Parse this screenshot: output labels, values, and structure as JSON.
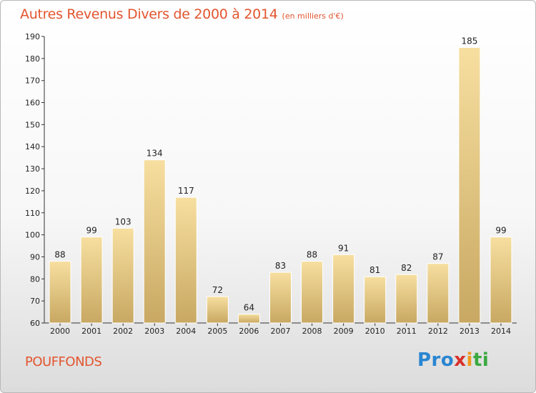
{
  "title": "Autres Revenus Divers de 2000 à 2014",
  "subtitle": "(en milliers d'€)",
  "commune": "POUFFONDS",
  "logo": {
    "p1": "Pro",
    "p2": "x",
    "p3": "i",
    "p4": "ti"
  },
  "colors": {
    "title": "#e2552f",
    "bar_light": "#f7dfa0",
    "bar_dark": "#c8a862"
  },
  "chart_data": {
    "type": "bar",
    "categories": [
      "2000",
      "2001",
      "2002",
      "2003",
      "2004",
      "2005",
      "2006",
      "2007",
      "2008",
      "2009",
      "2010",
      "2011",
      "2012",
      "2013",
      "2014"
    ],
    "values": [
      88,
      99,
      103,
      134,
      117,
      72,
      64,
      83,
      88,
      91,
      81,
      82,
      87,
      185,
      99
    ],
    "ylim": [
      60,
      190
    ],
    "yticks": [
      60,
      70,
      80,
      90,
      100,
      110,
      120,
      130,
      140,
      150,
      160,
      170,
      180,
      190
    ],
    "grid": false,
    "legend": "none"
  }
}
